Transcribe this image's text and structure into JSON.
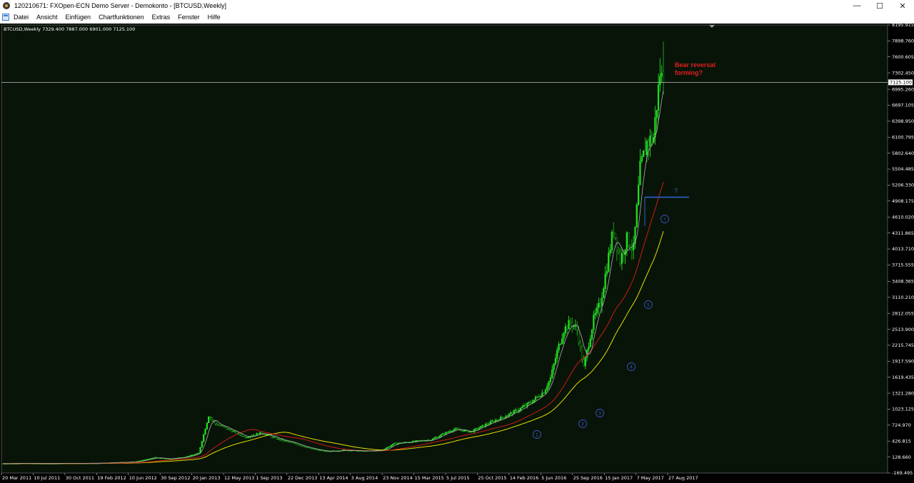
{
  "window": {
    "title": "120210671: FXOpen-ECN Demo Server - Demokonto - [BTCUSD,Weekly]",
    "controls": {
      "minimize": "—",
      "maximize": "☐",
      "close": "✕"
    }
  },
  "menu": [
    {
      "label": "Datei",
      "id": "datei"
    },
    {
      "label": "Ansicht",
      "id": "ansicht"
    },
    {
      "label": "Einfügen",
      "id": "einfuegen"
    },
    {
      "label": "Chartfunktionen",
      "id": "chartfunktionen"
    },
    {
      "label": "Extras",
      "id": "extras"
    },
    {
      "label": "Fenster",
      "id": "fenster"
    },
    {
      "label": "Hilfe",
      "id": "hilfe"
    }
  ],
  "chart_data": {
    "type": "candlestick",
    "symbol": "BTCUSD",
    "timeframe": "Weekly",
    "info_line": "BTCUSD,Weekly  7329.400 7887.000 6901.000 7125.100",
    "ohlc_last": {
      "open": 7329.4,
      "high": 7887.0,
      "low": 6901.0,
      "close": 7125.1
    },
    "current_price": 7125.1,
    "current_price_label": "7125.100",
    "colors": {
      "background": "#000000",
      "plot_background": "#081408",
      "bull": "#22dd22",
      "bear": "#22aa22",
      "price_line": "#c0c0c0",
      "ma_fast": "#b0b0b0",
      "ma_mid": "#d01818",
      "ma_slow": "#e8e000",
      "annotation": "#e02020",
      "level_line": "#3060d0",
      "markers": "#3a50c0",
      "axis_text": "#ffffff"
    },
    "y_ticks": [
      "8195.915",
      "7898.760",
      "7600.605",
      "7302.450",
      "6995.260",
      "6697.105",
      "6398.950",
      "6100.795",
      "5802.640",
      "5504.485",
      "5206.330",
      "4908.175",
      "4610.020",
      "4311.865",
      "4013.710",
      "3715.555",
      "3408.365",
      "3110.210",
      "2812.055",
      "2513.900",
      "2215.745",
      "1917.590",
      "1619.435",
      "1321.280",
      "1023.125",
      "724.970",
      "426.815",
      "128.660",
      "-169.495"
    ],
    "ylim": [
      -169.495,
      8195.915
    ],
    "x_ticks": [
      "20 Mar 2011",
      "10 Jul 2011",
      "30 Oct 2011",
      "19 Feb 2012",
      "10 Jun 2012",
      "30 Sep 2012",
      "20 Jan 2013",
      "12 May 2013",
      "1 Sep 2013",
      "22 Dec 2013",
      "13 Apr 2014",
      "3 Aug 2014",
      "23 Nov 2014",
      "15 Mar 2015",
      "5 Jul 2015",
      "25 Oct 2015",
      "14 Feb 2016",
      "5 Jun 2016",
      "25 Sep 2016",
      "15 Jan 2017",
      "7 May 2017",
      "27 Aug 2017"
    ],
    "series_close_approx": [
      [
        0,
        5
      ],
      [
        12,
        10
      ],
      [
        24,
        6
      ],
      [
        40,
        10
      ],
      [
        60,
        15
      ],
      [
        80,
        40
      ],
      [
        92,
        120
      ],
      [
        100,
        90
      ],
      [
        110,
        130
      ],
      [
        118,
        200
      ],
      [
        124,
        900
      ],
      [
        128,
        750
      ],
      [
        132,
        700
      ],
      [
        138,
        620
      ],
      [
        146,
        500
      ],
      [
        156,
        580
      ],
      [
        166,
        460
      ],
      [
        176,
        380
      ],
      [
        186,
        280
      ],
      [
        196,
        230
      ],
      [
        206,
        260
      ],
      [
        216,
        240
      ],
      [
        228,
        250
      ],
      [
        236,
        380
      ],
      [
        248,
        420
      ],
      [
        258,
        450
      ],
      [
        266,
        570
      ],
      [
        272,
        650
      ],
      [
        282,
        600
      ],
      [
        292,
        750
      ],
      [
        302,
        880
      ],
      [
        310,
        1000
      ],
      [
        318,
        1150
      ],
      [
        326,
        1350
      ],
      [
        330,
        1600
      ],
      [
        334,
        2100
      ],
      [
        338,
        2500
      ],
      [
        342,
        2650
      ],
      [
        346,
        2500
      ],
      [
        350,
        1800
      ],
      [
        356,
        2700
      ],
      [
        360,
        3000
      ],
      [
        364,
        3700
      ],
      [
        368,
        4400
      ],
      [
        372,
        3800
      ],
      [
        376,
        4200
      ],
      [
        380,
        4000
      ],
      [
        384,
        5500
      ],
      [
        388,
        6000
      ],
      [
        392,
        6100
      ],
      [
        396,
        7300
      ],
      [
        398,
        7125
      ]
    ],
    "annotations": [
      {
        "text": "Bear reversal",
        "text2": "forming?"
      },
      {
        "text": "?"
      }
    ],
    "markers": [
      "1",
      "2",
      "3",
      "4",
      "5",
      "?"
    ],
    "level_line_value": 4980
  }
}
